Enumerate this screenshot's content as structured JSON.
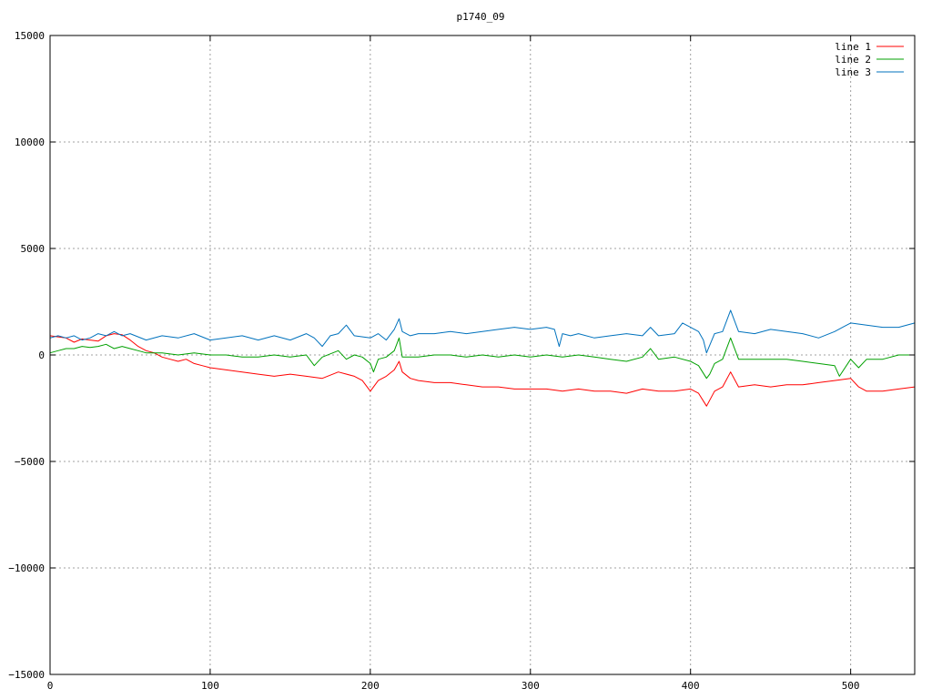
{
  "chart_data": {
    "type": "line",
    "title": "p1740_09",
    "xlabel": "",
    "ylabel": "",
    "xlim": [
      0,
      540
    ],
    "ylim": [
      -15000,
      15000
    ],
    "x_ticks": [
      0,
      100,
      200,
      300,
      400,
      500
    ],
    "y_ticks": [
      -15000,
      -10000,
      -5000,
      0,
      5000,
      10000,
      15000
    ],
    "grid": true,
    "legend_position": "top-right",
    "series": [
      {
        "name": "line 1",
        "color": "#ff0000",
        "x": [
          0,
          5,
          10,
          15,
          20,
          25,
          30,
          35,
          40,
          45,
          50,
          55,
          60,
          65,
          70,
          75,
          80,
          85,
          90,
          95,
          100,
          110,
          120,
          130,
          140,
          150,
          160,
          170,
          180,
          190,
          195,
          200,
          205,
          210,
          215,
          218,
          220,
          225,
          230,
          240,
          250,
          260,
          270,
          280,
          290,
          300,
          310,
          320,
          330,
          340,
          350,
          360,
          370,
          380,
          390,
          400,
          405,
          410,
          415,
          420,
          425,
          430,
          440,
          450,
          460,
          470,
          480,
          490,
          500,
          505,
          510,
          520,
          530,
          540
        ],
        "y": [
          900,
          850,
          800,
          600,
          750,
          700,
          650,
          900,
          1000,
          950,
          700,
          400,
          200,
          100,
          -100,
          -200,
          -300,
          -200,
          -400,
          -500,
          -600,
          -700,
          -800,
          -900,
          -1000,
          -900,
          -1000,
          -1100,
          -800,
          -1000,
          -1200,
          -1700,
          -1200,
          -1000,
          -700,
          -300,
          -800,
          -1100,
          -1200,
          -1300,
          -1300,
          -1400,
          -1500,
          -1500,
          -1600,
          -1600,
          -1600,
          -1700,
          -1600,
          -1700,
          -1700,
          -1800,
          -1600,
          -1700,
          -1700,
          -1600,
          -1800,
          -2400,
          -1700,
          -1500,
          -800,
          -1500,
          -1400,
          -1500,
          -1400,
          -1400,
          -1300,
          -1200,
          -1100,
          -1500,
          -1700,
          -1700,
          -1600,
          -1500
        ]
      },
      {
        "name": "line 2",
        "color": "#00a000",
        "x": [
          0,
          5,
          10,
          15,
          20,
          25,
          30,
          35,
          40,
          45,
          50,
          55,
          60,
          70,
          80,
          90,
          100,
          110,
          120,
          130,
          140,
          150,
          160,
          165,
          170,
          180,
          185,
          190,
          195,
          200,
          202,
          205,
          210,
          215,
          218,
          220,
          225,
          230,
          240,
          250,
          260,
          270,
          280,
          290,
          300,
          310,
          320,
          330,
          340,
          350,
          360,
          370,
          375,
          380,
          390,
          400,
          405,
          410,
          412,
          415,
          420,
          425,
          430,
          440,
          450,
          460,
          470,
          480,
          490,
          493,
          500,
          505,
          510,
          520,
          530,
          540
        ],
        "y": [
          100,
          200,
          300,
          300,
          400,
          350,
          400,
          500,
          300,
          400,
          300,
          200,
          100,
          100,
          0,
          100,
          0,
          0,
          -100,
          -100,
          0,
          -100,
          0,
          -500,
          -100,
          200,
          -200,
          0,
          -100,
          -400,
          -800,
          -200,
          -100,
          200,
          800,
          -100,
          -100,
          -100,
          0,
          0,
          -100,
          0,
          -100,
          0,
          -100,
          0,
          -100,
          0,
          -100,
          -200,
          -300,
          -100,
          300,
          -200,
          -100,
          -300,
          -500,
          -1100,
          -900,
          -400,
          -200,
          800,
          -200,
          -200,
          -200,
          -200,
          -300,
          -400,
          -500,
          -1000,
          -200,
          -600,
          -200,
          -200,
          0,
          0
        ]
      },
      {
        "name": "line 3",
        "color": "#0072bd",
        "x": [
          0,
          5,
          10,
          15,
          20,
          25,
          30,
          35,
          40,
          45,
          50,
          60,
          70,
          80,
          90,
          100,
          110,
          120,
          130,
          140,
          150,
          160,
          165,
          170,
          175,
          180,
          185,
          190,
          200,
          205,
          210,
          215,
          218,
          220,
          225,
          230,
          240,
          250,
          260,
          270,
          280,
          290,
          300,
          310,
          315,
          318,
          320,
          325,
          330,
          340,
          350,
          360,
          370,
          375,
          380,
          390,
          395,
          400,
          405,
          408,
          410,
          415,
          420,
          425,
          430,
          440,
          450,
          460,
          470,
          480,
          490,
          495,
          500,
          510,
          520,
          530,
          540
        ],
        "y": [
          800,
          900,
          800,
          900,
          700,
          800,
          1000,
          900,
          1100,
          900,
          1000,
          700,
          900,
          800,
          1000,
          700,
          800,
          900,
          700,
          900,
          700,
          1000,
          800,
          400,
          900,
          1000,
          1400,
          900,
          800,
          1000,
          700,
          1200,
          1700,
          1100,
          900,
          1000,
          1000,
          1100,
          1000,
          1100,
          1200,
          1300,
          1200,
          1300,
          1200,
          400,
          1000,
          900,
          1000,
          800,
          900,
          1000,
          900,
          1300,
          900,
          1000,
          1500,
          1300,
          1100,
          700,
          100,
          1000,
          1100,
          2100,
          1100,
          1000,
          1200,
          1100,
          1000,
          800,
          1100,
          1300,
          1500,
          1400,
          1300,
          1300,
          1500
        ]
      }
    ]
  }
}
